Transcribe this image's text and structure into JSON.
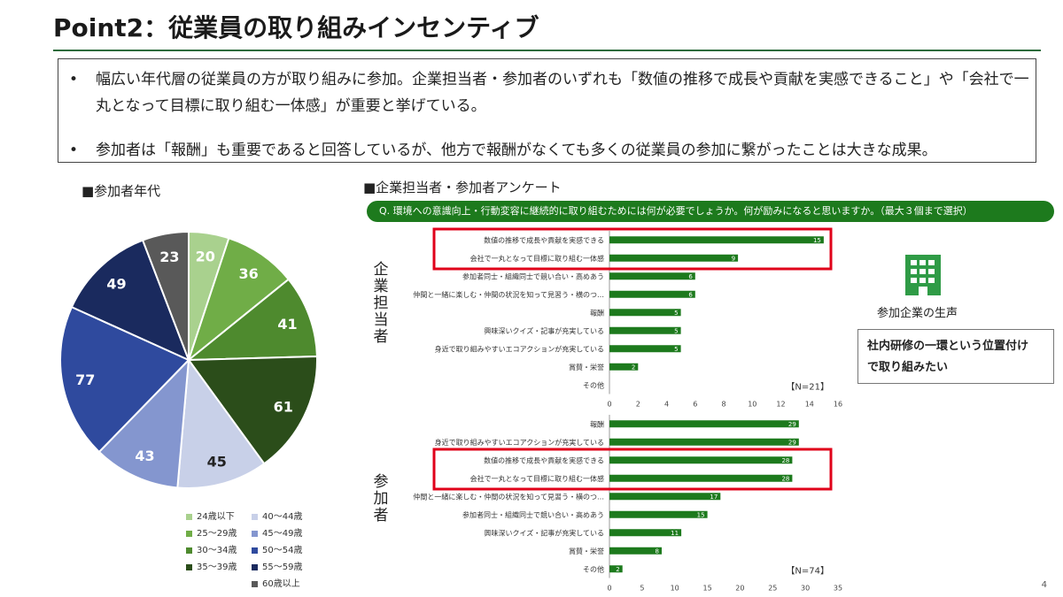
{
  "title": "Point2：従業員の取り組みインセンティブ",
  "bullets": [
    "幅広い年代層の従業員の方が取り組みに参加。企業担当者・参加者のいずれも「数値の推移で成長や貢献を実感できること」や「会社で一丸となって目標に取り組む一体感」が重要と挙げている。",
    "参加者は「報酬」も重要であると回答しているが、他方で報酬がなくても多くの従業員の参加に繋がったことは大きな成果。"
  ],
  "bullet_marker": "•",
  "pie_section_label": "■参加者年代",
  "survey_section_label": "■企業担当者・参加者アンケート",
  "question": "Q. 環境への意識向上・行動変容に継続的に取り組むためには何が必要でしょうか。何が励みになると思いますか。（最大３個まで選択）",
  "group_labels": {
    "company": "企業担当者",
    "participant": "参加者"
  },
  "voice": {
    "label": "参加企業の生声",
    "line1": "社内研修の一環という位置付け",
    "line2": "で取り組みたい"
  },
  "page_number": "4",
  "colors": {
    "accent": "#1d7a1d",
    "highlight": "#e0001a",
    "rule": "#2d6b3c",
    "building": "#2f9b46"
  },
  "chart_data": [
    {
      "type": "pie",
      "title": "■参加者年代",
      "categories": [
        "24歳以下",
        "25〜29歳",
        "30〜34歳",
        "35〜39歳",
        "40〜44歳",
        "45〜49歳",
        "50〜54歳",
        "55〜59歳",
        "60歳以上"
      ],
      "values": [
        20,
        36,
        41,
        61,
        45,
        43,
        77,
        49,
        23
      ],
      "colors": [
        "#a9d18e",
        "#70ad47",
        "#4e8a2e",
        "#2b4d1a",
        "#c8d0e8",
        "#8496cf",
        "#2f4a9e",
        "#1a2a5e",
        "#595959"
      ],
      "label_colors": [
        "#ffffff",
        "#ffffff",
        "#ffffff",
        "#ffffff",
        "#222222",
        "#ffffff",
        "#ffffff",
        "#ffffff",
        "#ffffff"
      ]
    },
    {
      "type": "bar",
      "orientation": "horizontal",
      "group": "企業担当者",
      "categories": [
        "数値の推移で成長や貢献を実感できる",
        "会社で一丸となって目標に取り組む一体感",
        "参加者同士・組織同士で競い合い・高めあう",
        "仲間と一緒に楽しむ・仲間の状況を知って見習う・横のつ…",
        "報酬",
        "興味深いクイズ・記事が充実している",
        "身近で取り組みやすいエコアクションが充実している",
        "賞賛・栄誉",
        "その他"
      ],
      "values": [
        15,
        9,
        6,
        6,
        5,
        5,
        5,
        2,
        0
      ],
      "xlim": [
        0,
        16
      ],
      "xticks": [
        "0",
        "2",
        "4",
        "6",
        "8",
        "10",
        "12",
        "14",
        "16"
      ],
      "highlighted": [
        0,
        1
      ],
      "note": "【N=21】",
      "bar_color": "#1d7a1d"
    },
    {
      "type": "bar",
      "orientation": "horizontal",
      "group": "参加者",
      "categories": [
        "報酬",
        "身近で取り組みやすいエコアクションが充実している",
        "数値の推移で成長や貢献を実感できる",
        "会社で一丸となって目標に取り組む一体感",
        "仲間と一緒に楽しむ・仲間の状況を知って見習う・横のつ…",
        "参加者同士・組織同士で競い合い・高めあう",
        "興味深いクイズ・記事が充実している",
        "賞賛・栄誉",
        "その他"
      ],
      "values": [
        29,
        29,
        28,
        28,
        17,
        15,
        11,
        8,
        2
      ],
      "xlim": [
        0,
        35
      ],
      "xticks": [
        "0",
        "5",
        "10",
        "15",
        "20",
        "25",
        "30",
        "35"
      ],
      "highlighted": [
        2,
        3
      ],
      "note": "【N=74】",
      "bar_color": "#1d7a1d"
    }
  ]
}
